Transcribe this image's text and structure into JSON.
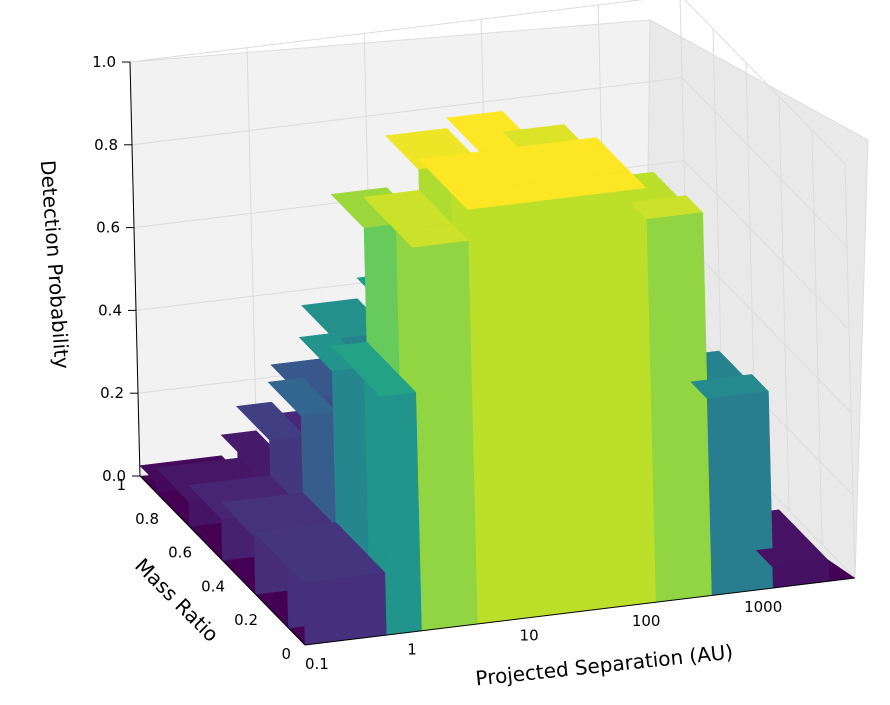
{
  "chart_data": {
    "type": "surface3d",
    "title": "",
    "xlabel": "Projected Separation (AU)",
    "ylabel": "Mass Ratio",
    "zlabel": "Detection Probability",
    "x_scale": "log",
    "x_ticks": [
      {
        "value": 0.1,
        "label": "0.1"
      },
      {
        "value": 1,
        "label": "1"
      },
      {
        "value": 10,
        "label": "10"
      },
      {
        "value": 100,
        "label": "100"
      },
      {
        "value": 1000,
        "label": "1000"
      }
    ],
    "y_ticks": [
      {
        "value": 0,
        "label": "0"
      },
      {
        "value": 0.2,
        "label": "0.2"
      },
      {
        "value": 0.4,
        "label": "0.4"
      },
      {
        "value": 0.6,
        "label": "0.6"
      },
      {
        "value": 0.8,
        "label": "0.8"
      },
      {
        "value": 1,
        "label": "1"
      }
    ],
    "z_ticks": [
      {
        "value": 0.0,
        "label": "0.0"
      },
      {
        "value": 0.2,
        "label": "0.2"
      },
      {
        "value": 0.4,
        "label": "0.4"
      },
      {
        "value": 0.6,
        "label": "0.6"
      },
      {
        "value": 0.8,
        "label": "0.8"
      },
      {
        "value": 1.0,
        "label": "1.0"
      }
    ],
    "xlim": [
      0.1,
      5000
    ],
    "ylim": [
      0,
      1
    ],
    "zlim": [
      0,
      1
    ],
    "colormap": "viridis",
    "colormap_stops": [
      "#440154",
      "#482878",
      "#3e4989",
      "#31688e",
      "#26828e",
      "#1f9e89",
      "#35b779",
      "#6ece58",
      "#b5de2b",
      "#fde725"
    ],
    "grid": true,
    "surface_rows": [
      {
        "mass_ratio": 1.0,
        "x": [
          0.1,
          0.5,
          1,
          3,
          10,
          30,
          100,
          300,
          1000,
          3000
        ],
        "z": [
          0,
          0.05,
          0.1,
          0.12,
          0.1,
          0.08,
          0.05,
          0.02,
          0,
          0
        ]
      },
      {
        "mass_ratio": 0.8,
        "x": [
          0.1,
          0.5,
          1,
          3,
          10,
          30,
          100,
          300,
          1000,
          3000
        ],
        "z": [
          0,
          0.12,
          0.25,
          0.3,
          0.28,
          0.22,
          0.15,
          0.06,
          0,
          0
        ]
      },
      {
        "mass_ratio": 0.6,
        "x": [
          0.1,
          0.5,
          1,
          3,
          10,
          30,
          100,
          300,
          1000,
          3000
        ],
        "z": [
          0,
          0.2,
          0.45,
          0.55,
          0.55,
          0.48,
          0.38,
          0.15,
          0.02,
          0
        ]
      },
      {
        "mass_ratio": 0.4,
        "x": [
          0.1,
          0.5,
          1,
          3,
          10,
          30,
          100,
          300,
          1000,
          3000
        ],
        "z": [
          0,
          0.28,
          0.75,
          0.95,
          1.0,
          1.0,
          0.9,
          0.45,
          0.05,
          0
        ]
      },
      {
        "mass_ratio": 0.2,
        "x": [
          0.1,
          0.5,
          1,
          3,
          10,
          30,
          100,
          300,
          1000,
          3000
        ],
        "z": [
          0,
          0.3,
          0.85,
          1.0,
          1.0,
          1.0,
          1.0,
          0.8,
          0.1,
          0
        ]
      },
      {
        "mass_ratio": 0.0,
        "x": [
          0.1,
          0.5,
          1,
          3,
          10,
          30,
          100,
          300,
          1000,
          3000
        ],
        "z": [
          0,
          0.3,
          0.85,
          1.0,
          1.0,
          1.0,
          1.0,
          0.85,
          0.1,
          0
        ]
      }
    ]
  }
}
